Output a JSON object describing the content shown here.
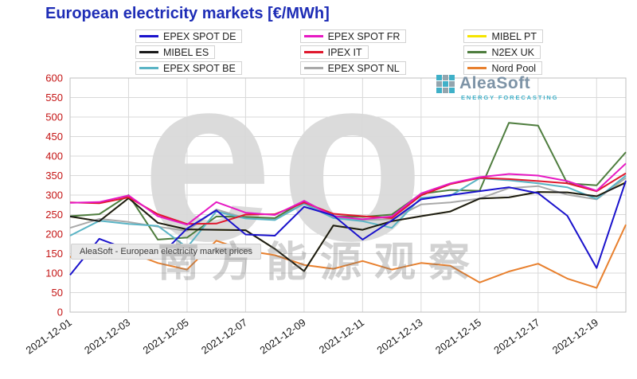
{
  "logo": {
    "name": "AleaSoft",
    "tagline": "ENERGY FORECASTING"
  },
  "watermarks": {
    "big_text": "eo",
    "cjk_text": "南方能源观察"
  },
  "annotations": {
    "source_note": "AleaSoft - European electricity market prices"
  },
  "chart_data": {
    "type": "line",
    "title": "European electricity markets [€/MWh]",
    "xlabel": "",
    "ylabel": "",
    "ylim": [
      0,
      600
    ],
    "yticks": [
      0,
      50,
      100,
      150,
      200,
      250,
      300,
      350,
      400,
      450,
      500,
      550,
      600
    ],
    "ytick_color": "#c41414",
    "xtick_color": "#1a1a1a",
    "grid": true,
    "legend_position": "top",
    "x": [
      "2021-12-01",
      "2021-12-02",
      "2021-12-03",
      "2021-12-04",
      "2021-12-05",
      "2021-12-06",
      "2021-12-07",
      "2021-12-08",
      "2021-12-09",
      "2021-12-10",
      "2021-12-11",
      "2021-12-12",
      "2021-12-13",
      "2021-12-14",
      "2021-12-15",
      "2021-12-16",
      "2021-12-17",
      "2021-12-18",
      "2021-12-19",
      "2021-12-20"
    ],
    "xtick_labels": [
      "2021-12-01",
      "2021-12-03",
      "2021-12-05",
      "2021-12-07",
      "2021-12-09",
      "2021-12-11",
      "2021-12-13",
      "2021-12-15",
      "2021-12-17",
      "2021-12-19"
    ],
    "series": [
      {
        "name": "EPEX SPOT DE",
        "color": "#1a12cc",
        "values": [
          95,
          188,
          160,
          139,
          214,
          261,
          199,
          196,
          270,
          248,
          186,
          235,
          289,
          300,
          310,
          320,
          305,
          247,
          113,
          337
        ]
      },
      {
        "name": "MIBEL ES",
        "color": "#1a1a1a",
        "values": [
          245,
          233,
          292,
          229,
          212,
          211,
          210,
          162,
          105,
          222,
          211,
          233,
          246,
          258,
          291,
          294,
          308,
          307,
          297,
          332
        ]
      },
      {
        "name": "EPEX SPOT BE",
        "color": "#5ab4c5",
        "values": [
          196,
          234,
          226,
          221,
          166,
          258,
          240,
          236,
          278,
          241,
          233,
          216,
          293,
          298,
          343,
          338,
          330,
          320,
          290,
          350
        ]
      },
      {
        "name": "EPEX SPOT FR",
        "color": "#e619c3",
        "values": [
          280,
          282,
          299,
          246,
          224,
          282,
          255,
          249,
          285,
          246,
          238,
          245,
          304,
          330,
          346,
          354,
          350,
          336,
          311,
          381
        ]
      },
      {
        "name": "IPEX IT",
        "color": "#e0182d",
        "values": [
          281,
          279,
          294,
          251,
          226,
          227,
          250,
          251,
          281,
          252,
          246,
          241,
          299,
          328,
          344,
          341,
          336,
          330,
          310,
          356
        ]
      },
      {
        "name": "EPEX SPOT NL",
        "color": "#a9a9a9",
        "values": [
          216,
          239,
          231,
          219,
          208,
          263,
          241,
          238,
          283,
          244,
          236,
          238,
          276,
          281,
          291,
          318,
          323,
          301,
          289,
          344
        ]
      },
      {
        "name": "MIBEL PT",
        "color": "#f5e400",
        "values": [
          245,
          233,
          292,
          229,
          212,
          211,
          210,
          162,
          105,
          222,
          211,
          233,
          246,
          258,
          291,
          294,
          308,
          307,
          297,
          333
        ]
      },
      {
        "name": "N2EX UK",
        "color": "#4e7d3e",
        "values": [
          246,
          251,
          300,
          186,
          191,
          245,
          244,
          241,
          285,
          246,
          244,
          250,
          303,
          313,
          311,
          485,
          478,
          330,
          325,
          410
        ]
      },
      {
        "name": "Nord Pool",
        "color": "#e8802e",
        "values": [
          141,
          161,
          154,
          126,
          109,
          183,
          158,
          146,
          121,
          111,
          131,
          109,
          126,
          119,
          76,
          104,
          124,
          86,
          62,
          224
        ]
      }
    ]
  }
}
